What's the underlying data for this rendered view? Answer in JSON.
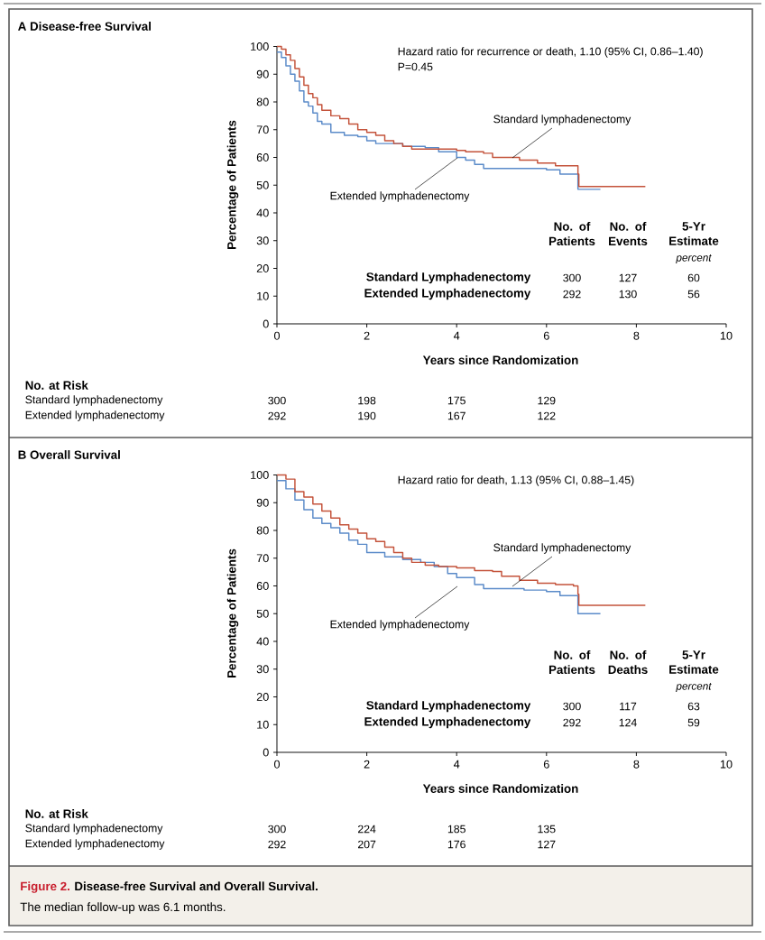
{
  "chart_data": [
    {
      "type": "step",
      "xlabel": "Years since Randomization",
      "ylabel": "Percentage of Patients",
      "xlim": [
        0,
        10
      ],
      "ylim": [
        0,
        100
      ],
      "xticks": [
        0,
        2,
        4,
        6,
        8,
        10
      ],
      "yticks": [
        0,
        10,
        20,
        30,
        40,
        50,
        60,
        70,
        80,
        90,
        100
      ],
      "series": [
        {
          "name": "Standard lymphadenectomy",
          "color": "#c4533b",
          "x": [
            0,
            0.1,
            0.2,
            0.3,
            0.4,
            0.5,
            0.6,
            0.7,
            0.8,
            0.9,
            1.0,
            1.2,
            1.4,
            1.6,
            1.8,
            2.0,
            2.2,
            2.4,
            2.6,
            2.8,
            3.0,
            4.0,
            4.2,
            4.6,
            4.8,
            5.4,
            5.8,
            6.2,
            6.7,
            6.72,
            8.2
          ],
          "values": [
            100,
            99,
            97,
            95,
            92,
            89,
            86,
            83,
            81.5,
            79,
            77,
            75,
            74,
            72,
            70,
            69,
            68,
            66,
            65,
            64,
            63,
            62.5,
            62,
            61.5,
            60,
            59,
            58,
            57,
            54,
            49.5,
            49.5
          ]
        },
        {
          "name": "Extended lymphadenectomy",
          "color": "#5b8bc9",
          "x": [
            0,
            0.1,
            0.2,
            0.3,
            0.4,
            0.5,
            0.6,
            0.7,
            0.8,
            0.9,
            1.0,
            1.2,
            1.5,
            1.8,
            2.0,
            2.2,
            2.8,
            3.3,
            3.6,
            4.0,
            4.2,
            4.4,
            4.6,
            6.0,
            6.3,
            6.7,
            7.2
          ],
          "values": [
            98,
            96,
            93,
            90,
            87.5,
            84,
            80,
            78.5,
            76,
            73,
            72,
            69,
            68,
            67.5,
            66,
            65,
            64,
            63.5,
            62,
            60,
            59,
            57.5,
            56,
            55.5,
            54,
            48.5,
            48.5
          ]
        }
      ],
      "annotations": [
        "A  Disease-free Survival",
        "Hazard ratio for recurrence or death, 1.10 (95% CI, 0.86–1.40)",
        "P=0.45",
        "No. of Patients",
        "No. of Events",
        "5-Yr Estimate",
        "percent",
        "Standard Lymphadenectomy",
        "300",
        "127",
        "60",
        "Extended Lymphadenectomy",
        "292",
        "130",
        "56",
        "No. at Risk",
        "Standard lymphadenectomy",
        "300",
        "198",
        "175",
        "129",
        "Extended lymphadenectomy",
        "292",
        "190",
        "167",
        "122"
      ]
    },
    {
      "type": "step",
      "xlabel": "Years since Randomization",
      "ylabel": "Percentage of Patients",
      "xlim": [
        0,
        10
      ],
      "ylim": [
        0,
        100
      ],
      "xticks": [
        0,
        2,
        4,
        6,
        8,
        10
      ],
      "yticks": [
        0,
        10,
        20,
        30,
        40,
        50,
        60,
        70,
        80,
        90,
        100
      ],
      "series": [
        {
          "name": "Standard lymphadenectomy",
          "color": "#c4533b",
          "x": [
            0,
            0.2,
            0.4,
            0.6,
            0.8,
            1.0,
            1.2,
            1.4,
            1.6,
            1.8,
            2.0,
            2.2,
            2.4,
            2.6,
            2.8,
            3.0,
            3.3,
            3.6,
            4.0,
            4.4,
            4.8,
            5.0,
            5.4,
            5.8,
            6.2,
            6.6,
            6.7,
            6.72,
            8.2
          ],
          "values": [
            100,
            98.5,
            94,
            92,
            89.5,
            87,
            84.5,
            82,
            80.5,
            79,
            77,
            76,
            74,
            72,
            70,
            68.5,
            67.5,
            67,
            66.5,
            65.5,
            65.2,
            63.5,
            62,
            61,
            60.5,
            60,
            57,
            53,
            53
          ]
        },
        {
          "name": "Extended lymphadenectomy",
          "color": "#5b8bc9",
          "x": [
            0,
            0.2,
            0.4,
            0.6,
            0.8,
            1.0,
            1.2,
            1.4,
            1.6,
            1.8,
            2.0,
            2.4,
            2.8,
            3.2,
            3.5,
            3.8,
            4.0,
            4.4,
            4.6,
            5.5,
            6.0,
            6.3,
            6.7,
            7.2
          ],
          "values": [
            98,
            95,
            91,
            87.5,
            84.5,
            82.5,
            81,
            79,
            76.5,
            75,
            72,
            70.5,
            69.5,
            68.5,
            67,
            64.5,
            63,
            60.5,
            59,
            58.5,
            58,
            56.5,
            50,
            50
          ]
        }
      ],
      "annotations": [
        "B  Overall Survival",
        "Hazard ratio for death, 1.13 (95% CI, 0.88–1.45)",
        "No. of Patients",
        "No. of Deaths",
        "5-Yr Estimate",
        "percent",
        "Standard Lymphadenectomy",
        "300",
        "117",
        "63",
        "Extended Lymphadenectomy",
        "292",
        "124",
        "59",
        "No. at Risk",
        "Standard lymphadenectomy",
        "300",
        "224",
        "185",
        "135",
        "Extended lymphadenectomy",
        "292",
        "207",
        "176",
        "127",
        "Figure 2.",
        "Disease-free Survival and Overall Survival.",
        "The median follow-up was 6.1 months."
      ]
    }
  ]
}
